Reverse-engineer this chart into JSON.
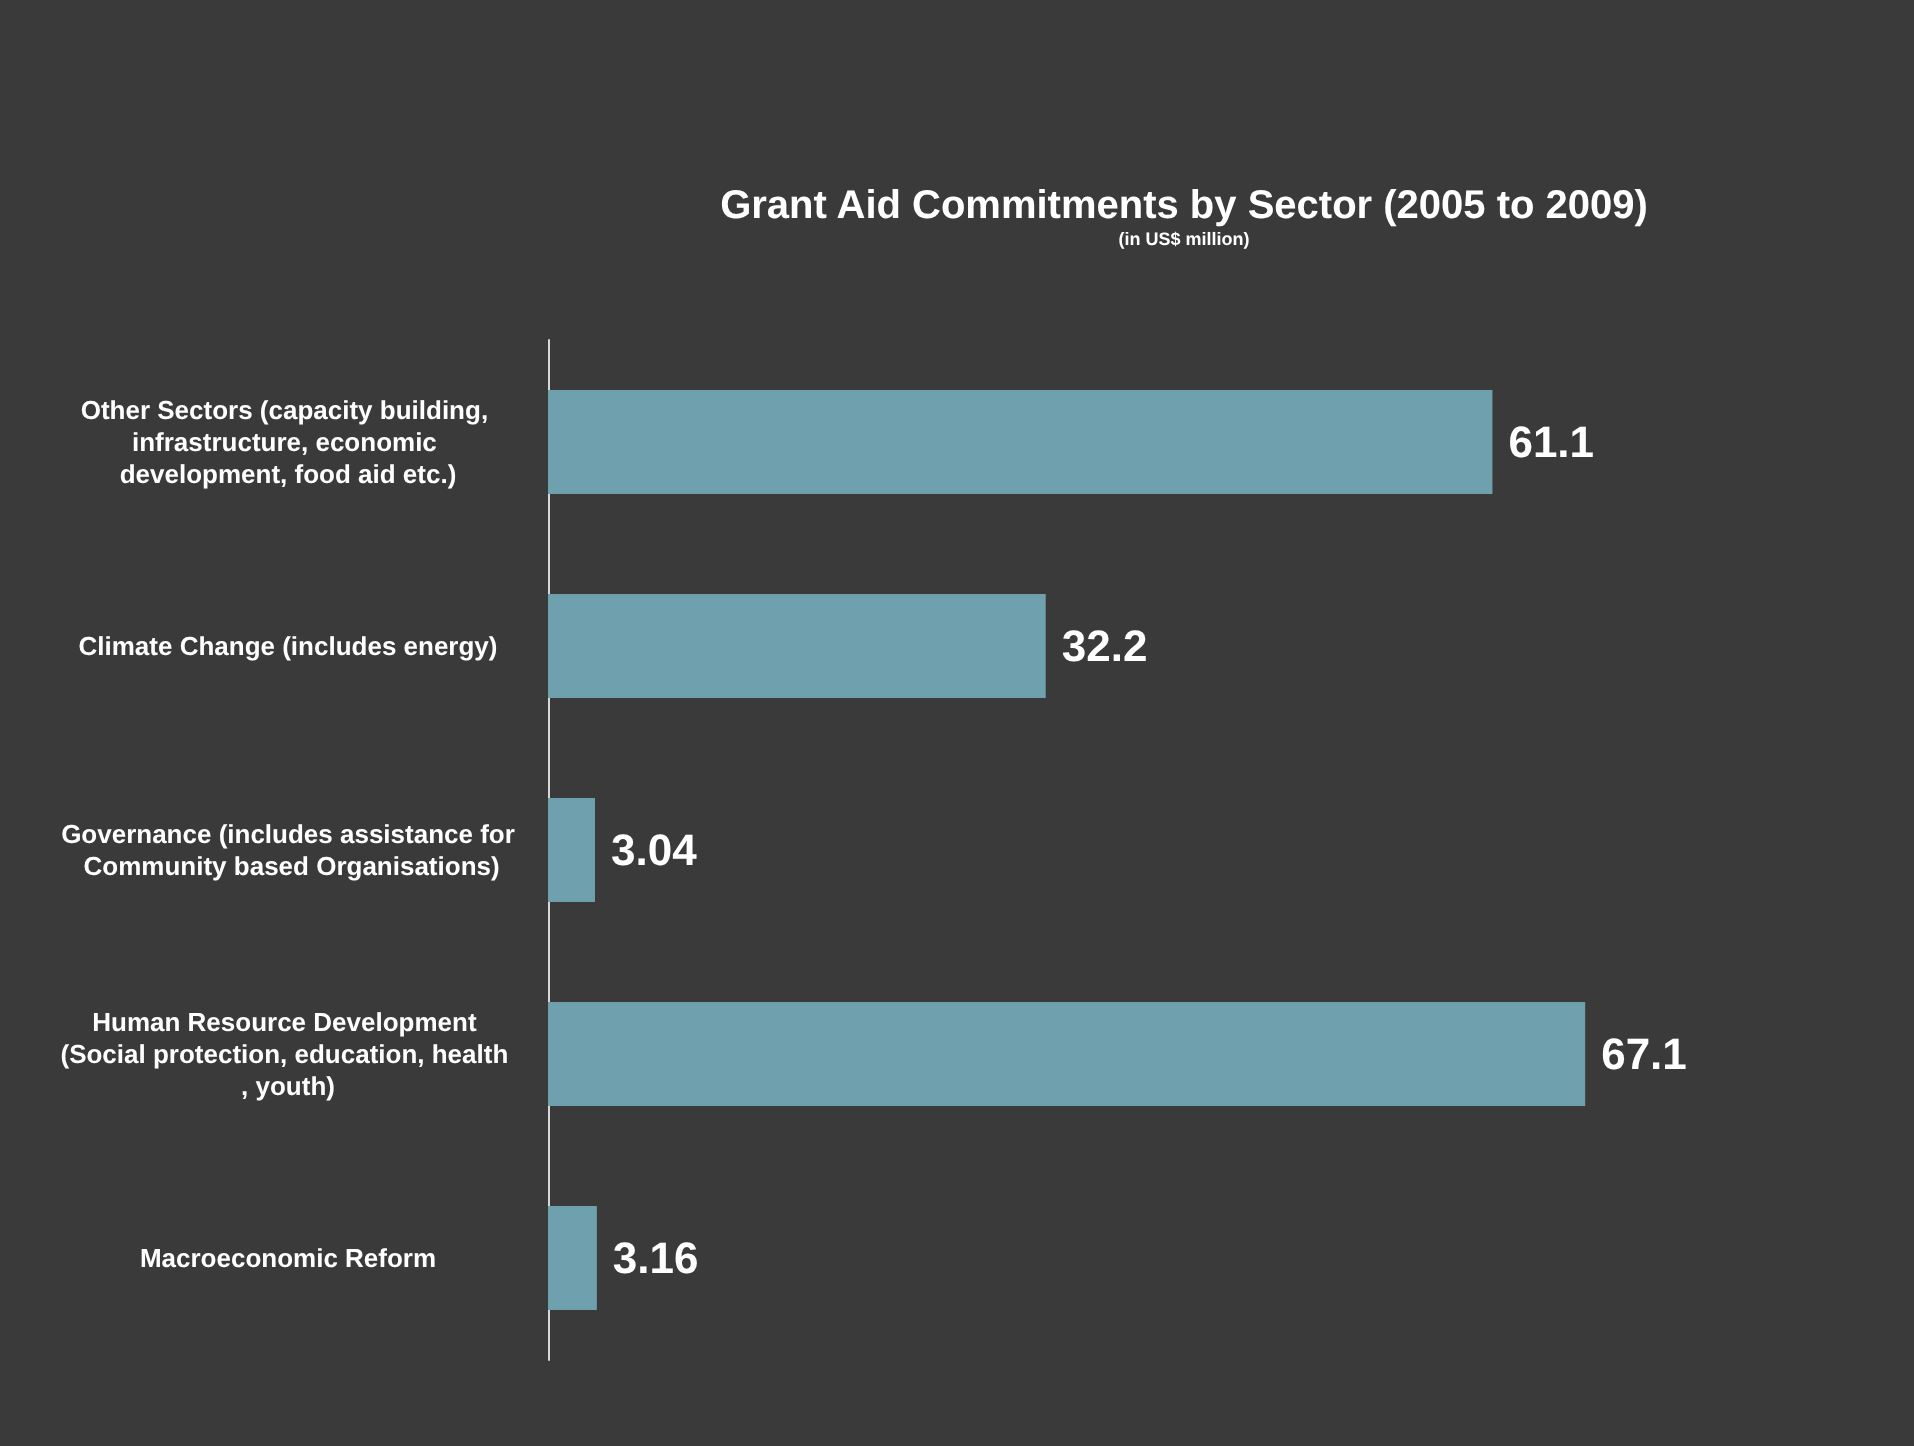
{
  "chart_data": {
    "type": "bar",
    "orientation": "horizontal",
    "title": "Grant Aid Commitments by Sector (2005 to 2009)",
    "subtitle": "(in US$ million)",
    "categories": [
      "Other Sectors (capacity building, infrastructure, economic development, food aid etc.)",
      "Climate Change (includes energy)",
      "Governance (includes assistance for Community based Organisations)",
      "Human Resource Development (Social protection, education, health , youth)",
      "Macroeconomic Reform"
    ],
    "values": [
      61.1,
      32.2,
      3.04,
      67.1,
      3.16
    ],
    "color": "#6fa0ae",
    "data_labels": true
  }
}
